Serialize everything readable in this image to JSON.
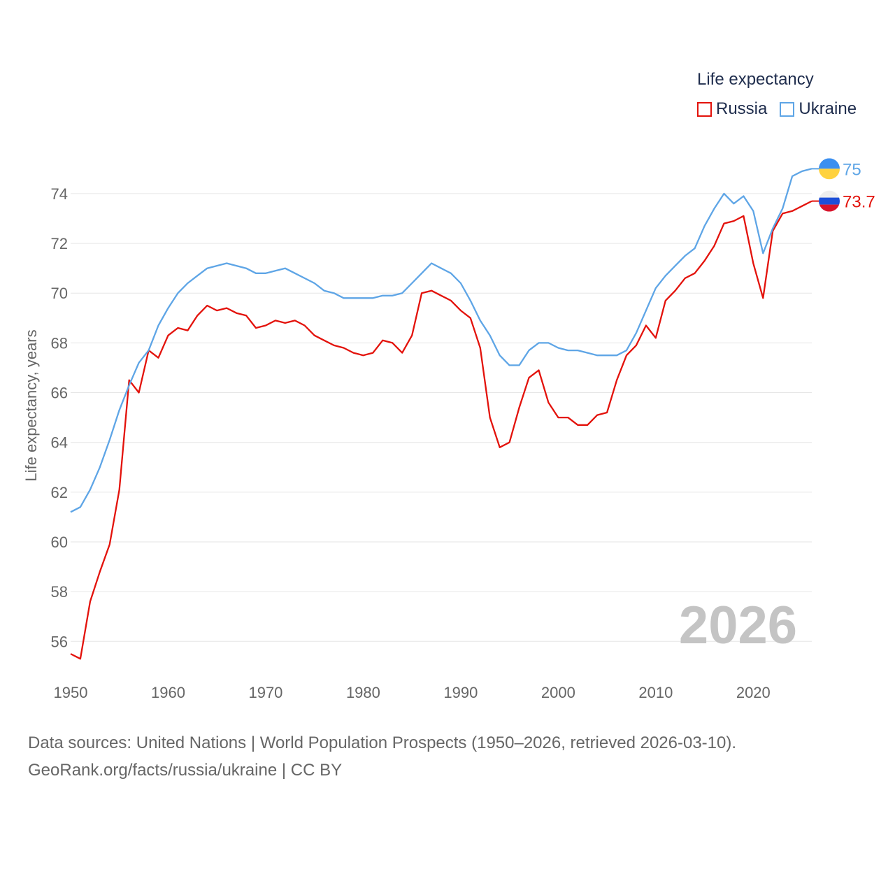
{
  "chart_data": {
    "type": "line",
    "title": "Life expectancy",
    "ylabel": "Life expectancy, years",
    "xlabel": "",
    "current_year_label": "2026",
    "xlim": [
      1950,
      2026
    ],
    "ylim": [
      54.8,
      75.6
    ],
    "x_ticks": [
      1950,
      1960,
      1970,
      1980,
      1990,
      2000,
      2010,
      2020
    ],
    "y_ticks": [
      56,
      58,
      60,
      62,
      64,
      66,
      68,
      70,
      72,
      74
    ],
    "grid": true,
    "legend_position": "top-right",
    "x": [
      1950,
      1951,
      1952,
      1953,
      1954,
      1955,
      1956,
      1957,
      1958,
      1959,
      1960,
      1961,
      1962,
      1963,
      1964,
      1965,
      1966,
      1967,
      1968,
      1969,
      1970,
      1971,
      1972,
      1973,
      1974,
      1975,
      1976,
      1977,
      1978,
      1979,
      1980,
      1981,
      1982,
      1983,
      1984,
      1985,
      1986,
      1987,
      1988,
      1989,
      1990,
      1991,
      1992,
      1993,
      1994,
      1995,
      1996,
      1997,
      1998,
      1999,
      2000,
      2001,
      2002,
      2003,
      2004,
      2005,
      2006,
      2007,
      2008,
      2009,
      2010,
      2011,
      2012,
      2013,
      2014,
      2015,
      2016,
      2017,
      2018,
      2019,
      2020,
      2021,
      2022,
      2023,
      2024,
      2025,
      2026
    ],
    "series": [
      {
        "name": "Russia",
        "color": "#e3120b",
        "end_label": "73.7",
        "values": [
          55.5,
          55.3,
          57.6,
          58.8,
          59.9,
          62.1,
          66.5,
          66.0,
          67.7,
          67.4,
          68.3,
          68.6,
          68.5,
          69.1,
          69.5,
          69.3,
          69.4,
          69.2,
          69.1,
          68.6,
          68.7,
          68.9,
          68.8,
          68.9,
          68.7,
          68.3,
          68.1,
          67.9,
          67.8,
          67.6,
          67.5,
          67.6,
          68.1,
          68.0,
          67.6,
          68.3,
          70.0,
          70.1,
          69.9,
          69.7,
          69.3,
          69.0,
          67.8,
          65.0,
          63.8,
          64.0,
          65.4,
          66.6,
          66.9,
          65.6,
          65.0,
          65.0,
          64.7,
          64.7,
          65.1,
          65.2,
          66.5,
          67.5,
          67.9,
          68.7,
          68.2,
          69.7,
          70.1,
          70.6,
          70.8,
          71.3,
          71.9,
          72.8,
          72.9,
          73.1,
          71.2,
          69.8,
          72.5,
          73.2,
          73.3,
          73.5,
          73.7
        ]
      },
      {
        "name": "Ukraine",
        "color": "#5ea5e6",
        "end_label": "75",
        "values": [
          61.2,
          61.4,
          62.1,
          63.0,
          64.1,
          65.3,
          66.3,
          67.2,
          67.7,
          68.7,
          69.4,
          70.0,
          70.4,
          70.7,
          71.0,
          71.1,
          71.2,
          71.1,
          71.0,
          70.8,
          70.8,
          70.9,
          71.0,
          70.8,
          70.6,
          70.4,
          70.1,
          70.0,
          69.8,
          69.8,
          69.8,
          69.8,
          69.9,
          69.9,
          70.0,
          70.4,
          70.8,
          71.2,
          71.0,
          70.8,
          70.4,
          69.7,
          68.9,
          68.3,
          67.5,
          67.1,
          67.1,
          67.7,
          68.0,
          68.0,
          67.8,
          67.7,
          67.7,
          67.6,
          67.5,
          67.5,
          67.5,
          67.7,
          68.4,
          69.3,
          70.2,
          70.7,
          71.1,
          71.5,
          71.8,
          72.7,
          73.4,
          74.0,
          73.6,
          73.9,
          73.3,
          71.6,
          72.6,
          73.4,
          74.7,
          74.9,
          75.0
        ]
      }
    ]
  },
  "legend": {
    "title": "Life expectancy",
    "items": [
      "Russia",
      "Ukraine"
    ]
  },
  "source": {
    "line1": "Data sources: United Nations | World Population Prospects (1950–2026, retrieved 2026-03-10).",
    "line2": "GeoRank.org/facts/russia/ukraine | CC BY"
  }
}
